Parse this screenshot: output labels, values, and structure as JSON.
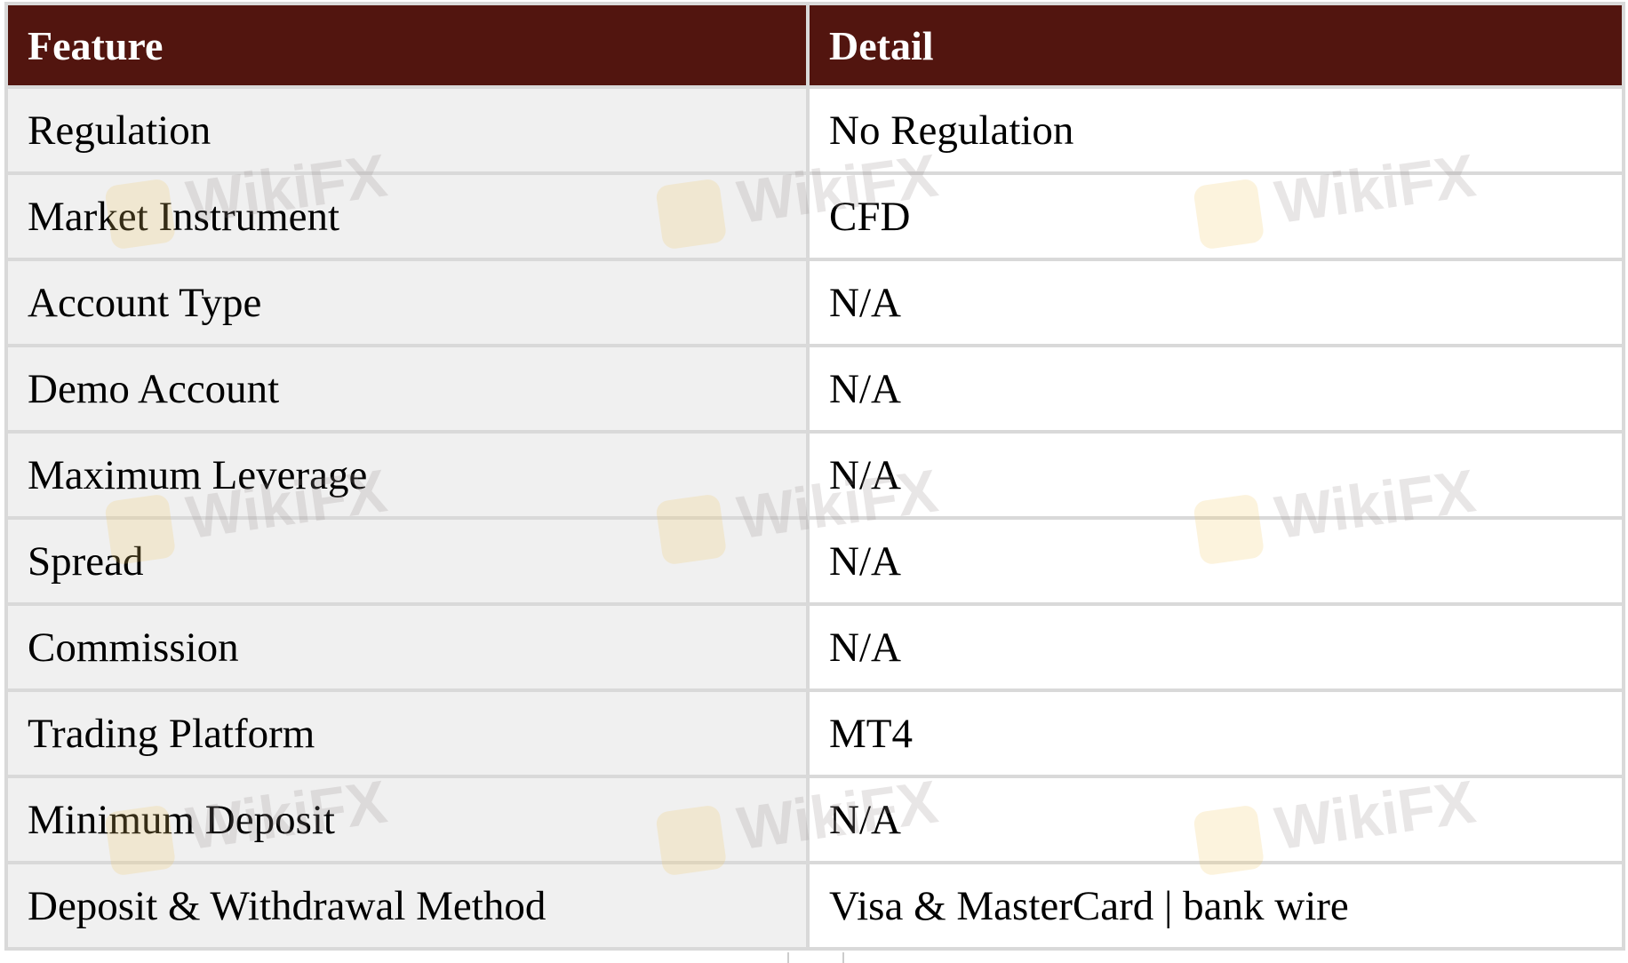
{
  "table": {
    "headers": [
      "Feature",
      "Detail"
    ],
    "rows": [
      [
        "Regulation",
        "No Regulation"
      ],
      [
        "Market Instrument",
        "CFD"
      ],
      [
        "Account Type",
        "N/A"
      ],
      [
        "Demo Account",
        "N/A"
      ],
      [
        "Maximum Leverage",
        "N/A"
      ],
      [
        "Spread",
        "N/A"
      ],
      [
        "Commission",
        "N/A"
      ],
      [
        "Trading Platform",
        "MT4"
      ],
      [
        "Minimum Deposit",
        "N/A"
      ],
      [
        "Deposit & Withdrawal Method",
        "Visa & MasterCard | bank wire"
      ]
    ]
  },
  "colors": {
    "header_bg": "#52150f",
    "feature_bg": "#f0f0f0",
    "border": "#d9d9d9"
  },
  "watermark": "WikiFX"
}
